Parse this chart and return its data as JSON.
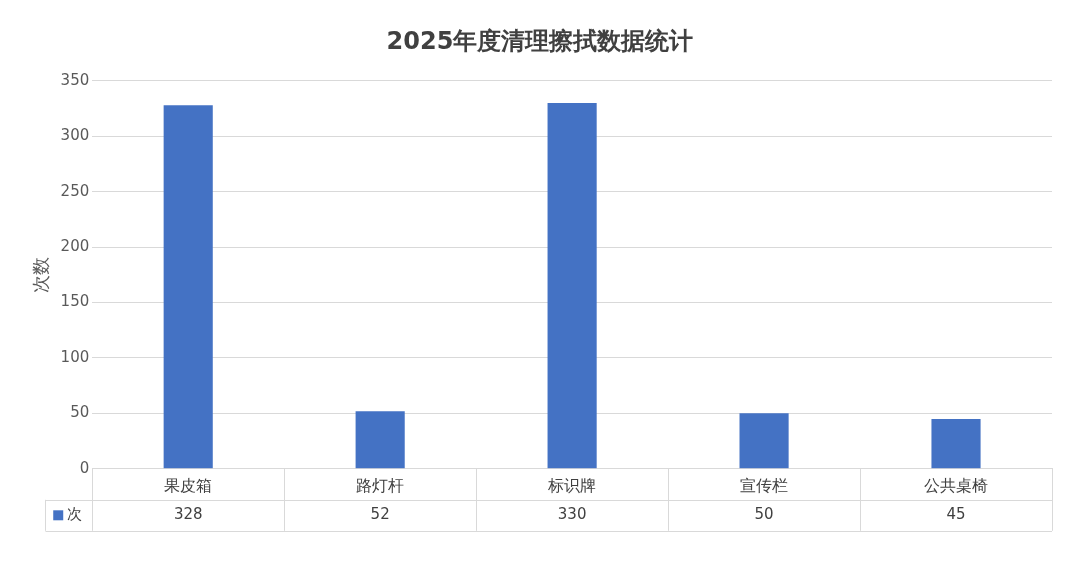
{
  "chart_data": {
    "type": "bar",
    "title": "2025年度清理擦拭数据统计",
    "ylabel": "次数",
    "categories": [
      "果皮箱",
      "路灯杆",
      "标识牌",
      "宣传栏",
      "公共桌椅"
    ],
    "series": [
      {
        "name": "次",
        "color": "#4472c4",
        "values": [
          328,
          52,
          330,
          50,
          45
        ]
      }
    ],
    "ylim": [
      0,
      350
    ],
    "yticks": [
      0,
      50,
      100,
      150,
      200,
      250,
      300,
      350
    ],
    "grid": "y",
    "legend": "bottom",
    "data_labels": true
  }
}
